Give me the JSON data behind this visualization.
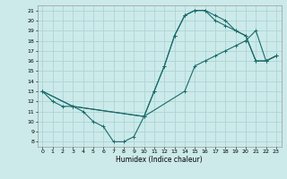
{
  "xlabel": "Humidex (Indice chaleur)",
  "bg_color": "#cceaea",
  "grid_color": "#aed4d4",
  "line_color": "#1a6b6b",
  "xlim": [
    -0.5,
    23.5
  ],
  "ylim": [
    7.5,
    21.5
  ],
  "xticks": [
    0,
    1,
    2,
    3,
    4,
    5,
    6,
    7,
    8,
    9,
    10,
    11,
    12,
    13,
    14,
    15,
    16,
    17,
    18,
    19,
    20,
    21,
    22,
    23
  ],
  "yticks": [
    8,
    9,
    10,
    11,
    12,
    13,
    14,
    15,
    16,
    17,
    18,
    19,
    20,
    21
  ],
  "series": [
    {
      "x": [
        0,
        1,
        2,
        3,
        4,
        5,
        6,
        7,
        8,
        9,
        10,
        11,
        12,
        13,
        14,
        15,
        16,
        17,
        18,
        19,
        20,
        21,
        22,
        23
      ],
      "y": [
        13,
        12,
        11.5,
        11.5,
        11,
        10,
        9.5,
        8,
        8,
        8.5,
        10.5,
        13,
        15.5,
        18.5,
        20.5,
        21,
        21,
        20.5,
        20,
        19,
        18.5,
        16,
        16,
        16.5
      ]
    },
    {
      "x": [
        0,
        3,
        10,
        14,
        15,
        16,
        17,
        18,
        19,
        20,
        21,
        22,
        23
      ],
      "y": [
        13,
        11.5,
        10.5,
        13,
        15.5,
        16,
        16.5,
        17,
        17.5,
        18,
        19,
        16,
        16.5
      ]
    },
    {
      "x": [
        0,
        3,
        10,
        11,
        12,
        13,
        14,
        15,
        16,
        17,
        18,
        19,
        20,
        21,
        22,
        23
      ],
      "y": [
        13,
        11.5,
        10.5,
        13,
        15.5,
        18.5,
        20.5,
        21,
        21,
        20,
        19.5,
        19,
        18.5,
        16,
        16,
        16.5
      ]
    }
  ]
}
